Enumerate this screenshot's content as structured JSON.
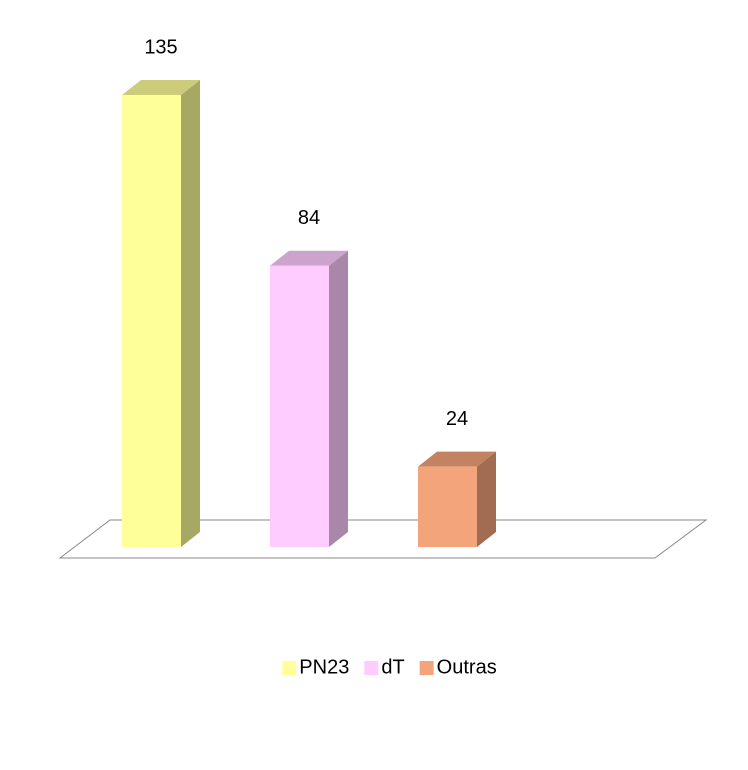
{
  "chart_data": {
    "type": "bar",
    "categories": [
      null
    ],
    "series": [
      {
        "name": "PN23",
        "color": "#ffff99",
        "values": [
          135
        ]
      },
      {
        "name": "dT",
        "color": "#ffccff",
        "values": [
          84
        ]
      },
      {
        "name": "Outras",
        "color": "#f4a47a",
        "values": [
          24
        ]
      }
    ],
    "legend": "bottom",
    "grid": false,
    "three_d": true
  }
}
